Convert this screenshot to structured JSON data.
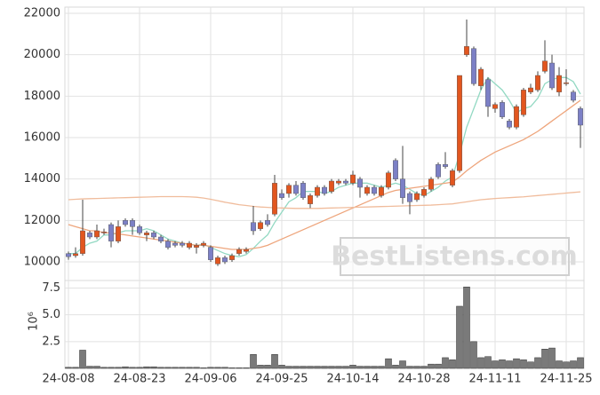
{
  "chart_data": {
    "type": "candlestick",
    "categories": [
      "24-08-08",
      null,
      null,
      null,
      null,
      null,
      null,
      null,
      null,
      null,
      "24-08-23",
      null,
      null,
      null,
      null,
      null,
      null,
      null,
      null,
      null,
      "24-09-06",
      null,
      null,
      null,
      null,
      null,
      null,
      null,
      null,
      null,
      "24-09-25",
      null,
      null,
      null,
      null,
      null,
      null,
      null,
      null,
      null,
      "24-10-14",
      null,
      null,
      null,
      null,
      null,
      null,
      null,
      null,
      null,
      "24-10-28",
      null,
      null,
      null,
      null,
      null,
      null,
      null,
      null,
      null,
      "24-11-11",
      null,
      null,
      null,
      null,
      null,
      null,
      null,
      null,
      null,
      "24-11-25",
      null,
      null
    ],
    "open": [
      10400,
      10300,
      10400,
      11400,
      11200,
      11400,
      11800,
      11000,
      12000,
      12000,
      11700,
      11300,
      11400,
      11200,
      11000,
      10900,
      10900,
      10700,
      10700,
      10800,
      10700,
      9900,
      10200,
      10100,
      10400,
      10500,
      11900,
      11600,
      12000,
      12300,
      13300,
      13300,
      13700,
      13800,
      12800,
      13200,
      13600,
      13400,
      13800,
      13900,
      13800,
      14000,
      13300,
      13600,
      13200,
      13600,
      14900,
      14000,
      13300,
      13000,
      13200,
      13500,
      14700,
      14700,
      13700,
      14400,
      20000,
      20300,
      18500,
      18800,
      17400,
      17700,
      16800,
      16500,
      17100,
      18200,
      18300,
      19200,
      19600,
      18200,
      18600,
      18200,
      17400
    ],
    "high": [
      10500,
      10700,
      13000,
      11500,
      11800,
      11600,
      11900,
      12000,
      12100,
      12100,
      11800,
      11500,
      11500,
      11300,
      11100,
      11000,
      11000,
      11000,
      10900,
      11000,
      10800,
      10300,
      10300,
      10400,
      10700,
      10700,
      12700,
      12000,
      12300,
      14200,
      13500,
      13800,
      13900,
      13900,
      13300,
      13700,
      13700,
      14000,
      14000,
      14000,
      14400,
      14100,
      13700,
      13700,
      13700,
      14400,
      15000,
      15600,
      13400,
      13400,
      13600,
      14100,
      14800,
      15300,
      14500,
      19000,
      21700,
      20400,
      19400,
      18900,
      17700,
      17800,
      16900,
      17600,
      18400,
      18600,
      19200,
      20700,
      20000,
      19400,
      19300,
      18300,
      17500
    ],
    "low": [
      10100,
      10200,
      10300,
      11100,
      11100,
      11300,
      10700,
      10900,
      11700,
      11300,
      11300,
      11000,
      11100,
      10900,
      10600,
      10700,
      10700,
      10600,
      10400,
      10700,
      10000,
      9800,
      9900,
      10000,
      10300,
      10400,
      11300,
      11500,
      11700,
      12200,
      13000,
      13100,
      13200,
      13000,
      12600,
      13100,
      13200,
      13300,
      13700,
      13700,
      13700,
      13100,
      13200,
      13200,
      13100,
      13500,
      13900,
      12800,
      12300,
      12900,
      13100,
      13400,
      14000,
      14500,
      13600,
      14300,
      19900,
      18500,
      18300,
      17000,
      17200,
      16900,
      16400,
      16400,
      17000,
      18100,
      18200,
      19100,
      18300,
      18000,
      18500,
      17700,
      15500
    ],
    "close": [
      10250,
      10400,
      11500,
      11200,
      11500,
      11450,
      11000,
      11700,
      11800,
      11700,
      11400,
      11400,
      11200,
      11000,
      10700,
      10800,
      10800,
      10900,
      10800,
      10900,
      10100,
      10200,
      10000,
      10300,
      10600,
      10600,
      11500,
      11900,
      11800,
      13800,
      13100,
      13700,
      13300,
      13100,
      13200,
      13600,
      13300,
      13900,
      13900,
      13800,
      14200,
      13600,
      13600,
      13300,
      13600,
      14300,
      14000,
      13100,
      12900,
      13300,
      13500,
      14000,
      14100,
      14600,
      14400,
      19000,
      20400,
      18600,
      19300,
      17500,
      17600,
      17000,
      16500,
      17500,
      18300,
      18400,
      19000,
      19700,
      18400,
      19000,
      18650,
      17800,
      16600
    ],
    "up_color": "#e2561f",
    "down_color": "#7c80c6",
    "ylim": [
      9100,
      22300
    ],
    "yticks": [
      10000,
      12000,
      14000,
      16000,
      18000,
      20000,
      22000
    ],
    "grid": true,
    "moving_averages": [
      {
        "color": "#93d9c3",
        "values": [
          10400,
          10400,
          10700,
          10900,
          11000,
          11300,
          11300,
          11400,
          11500,
          11500,
          11500,
          11600,
          11500,
          11300,
          11100,
          11000,
          10900,
          10850,
          10800,
          10850,
          10700,
          10550,
          10400,
          10300,
          10250,
          10350,
          10650,
          11000,
          11300,
          11900,
          12400,
          12900,
          13100,
          13400,
          13400,
          13400,
          13300,
          13400,
          13600,
          13700,
          13800,
          13800,
          13800,
          13700,
          13600,
          13700,
          13800,
          13700,
          13500,
          13300,
          13200,
          13400,
          13600,
          13900,
          14100,
          15200,
          16500,
          17400,
          18300,
          18900,
          18600,
          18300,
          17800,
          17200,
          17400,
          17500,
          17900,
          18600,
          18800,
          18900,
          18900,
          18700,
          18100
        ]
      },
      {
        "color": "#eea57c",
        "values": [
          11800,
          11700,
          11600,
          11500,
          11500,
          11400,
          11400,
          11350,
          11300,
          11250,
          11200,
          11150,
          11100,
          11050,
          11000,
          10950,
          10900,
          10850,
          10800,
          10800,
          10750,
          10700,
          10650,
          10600,
          10600,
          10600,
          10650,
          10700,
          10800,
          10950,
          11100,
          11250,
          11400,
          11550,
          11700,
          11850,
          12000,
          12150,
          12300,
          12450,
          12600,
          12750,
          12900,
          13050,
          13200,
          13350,
          13450,
          13500,
          13550,
          13600,
          13650,
          13700,
          13750,
          13800,
          13850,
          14100,
          14400,
          14650,
          14900,
          15100,
          15300,
          15450,
          15600,
          15750,
          15900,
          16100,
          16300,
          16550,
          16800,
          17050,
          17300,
          17550,
          17800
        ]
      },
      {
        "color": "#f0bc9c",
        "values": [
          13000,
          13020,
          13040,
          13050,
          13060,
          13070,
          13080,
          13090,
          13100,
          13110,
          13120,
          13130,
          13140,
          13150,
          13150,
          13150,
          13150,
          13140,
          13120,
          13080,
          13020,
          12950,
          12880,
          12820,
          12760,
          12720,
          12680,
          12650,
          12630,
          12610,
          12600,
          12590,
          12580,
          12580,
          12580,
          12580,
          12590,
          12600,
          12610,
          12620,
          12630,
          12640,
          12650,
          12660,
          12670,
          12680,
          12690,
          12700,
          12710,
          12720,
          12730,
          12740,
          12760,
          12780,
          12800,
          12850,
          12900,
          12950,
          13000,
          13030,
          13060,
          13080,
          13100,
          13120,
          13140,
          13170,
          13200,
          13230,
          13260,
          13290,
          13320,
          13350,
          13380
        ]
      }
    ],
    "volume": {
      "color": "#7a7a7a",
      "offset_text": "10⁶",
      "ylim": [
        0,
        8.2
      ],
      "yticks": [
        2.5,
        {
          "value": 5,
          "label": "5.0"
        },
        7.5
      ],
      "values": [
        0.1,
        0.1,
        1.7,
        0.2,
        0.2,
        0.1,
        0.1,
        0.1,
        0.15,
        0.1,
        0.1,
        0.15,
        0.15,
        0.1,
        0.1,
        0.1,
        0.1,
        0.1,
        0.1,
        0.05,
        0.1,
        0.1,
        0.1,
        0.05,
        0.05,
        0.05,
        1.3,
        0.3,
        0.3,
        1.3,
        0.3,
        0.2,
        0.2,
        0.2,
        0.2,
        0.2,
        0.2,
        0.2,
        0.2,
        0.2,
        0.3,
        0.2,
        0.2,
        0.2,
        0.2,
        0.9,
        0.3,
        0.7,
        0.2,
        0.2,
        0.2,
        0.4,
        0.4,
        1.0,
        0.8,
        5.8,
        7.6,
        2.5,
        1.0,
        1.1,
        0.7,
        0.8,
        0.7,
        0.9,
        0.8,
        0.6,
        1.0,
        1.8,
        1.9,
        0.7,
        0.6,
        0.7,
        1.0
      ]
    },
    "watermark": "BestListens.com"
  }
}
